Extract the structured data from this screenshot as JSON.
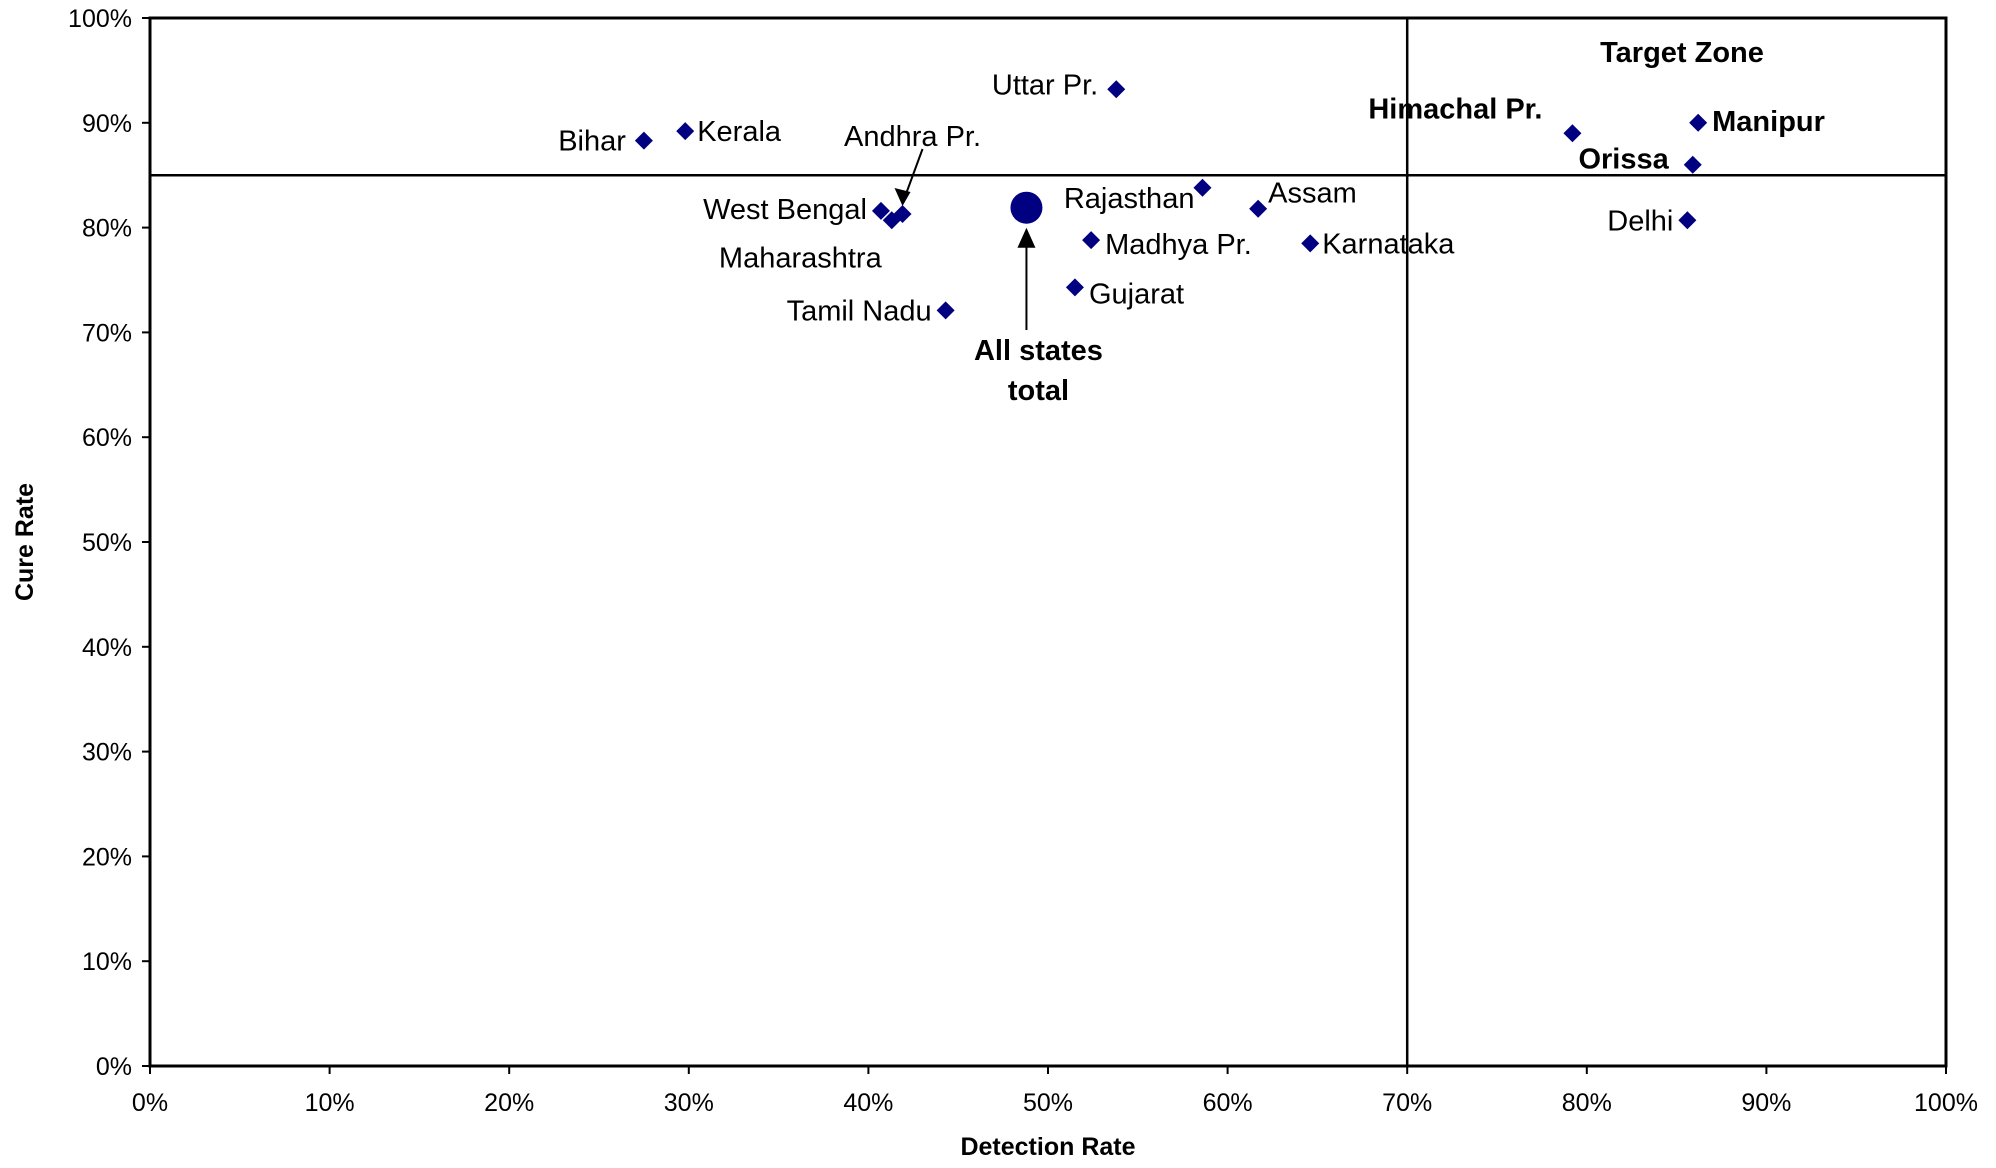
{
  "chart_data": {
    "type": "scatter",
    "title": "",
    "xlabel": "Detection Rate",
    "ylabel": "Cure Rate",
    "xlim": [
      0,
      100
    ],
    "ylim": [
      0,
      100
    ],
    "x_ticks": [
      "0%",
      "10%",
      "20%",
      "30%",
      "40%",
      "50%",
      "60%",
      "70%",
      "80%",
      "90%",
      "100%"
    ],
    "y_ticks": [
      "0%",
      "10%",
      "20%",
      "30%",
      "40%",
      "50%",
      "60%",
      "70%",
      "80%",
      "90%",
      "100%"
    ],
    "marker_color": "#000080",
    "grid": false,
    "reference_lines": {
      "target_detection": 70,
      "target_cure": 85
    },
    "points": [
      {
        "label": "Bihar",
        "x": 27.5,
        "y": 88.3,
        "bold": false
      },
      {
        "label": "Kerala",
        "x": 29.8,
        "y": 89.2,
        "bold": false
      },
      {
        "label": "Uttar Pr.",
        "x": 53.8,
        "y": 93.2,
        "bold": false
      },
      {
        "label": "Andhra Pr.",
        "x": 41.9,
        "y": 81.3,
        "bold": false
      },
      {
        "label": "West Bengal",
        "x": 40.7,
        "y": 81.6,
        "bold": false
      },
      {
        "label": "Maharashtra",
        "x": 41.3,
        "y": 80.7,
        "bold": false
      },
      {
        "label": "Tamil Nadu",
        "x": 44.3,
        "y": 72.1,
        "bold": false
      },
      {
        "label": "Rajasthan",
        "x": 58.6,
        "y": 83.8,
        "bold": false
      },
      {
        "label": "Assam",
        "x": 61.7,
        "y": 81.8,
        "bold": false
      },
      {
        "label": "Madhya Pr.",
        "x": 52.4,
        "y": 78.8,
        "bold": false
      },
      {
        "label": "Karnataka",
        "x": 64.6,
        "y": 78.5,
        "bold": false
      },
      {
        "label": "Gujarat",
        "x": 51.5,
        "y": 74.3,
        "bold": false
      },
      {
        "label": "Himachal Pr.",
        "x": 79.2,
        "y": 89.0,
        "bold": true
      },
      {
        "label": "Manipur",
        "x": 86.2,
        "y": 90.0,
        "bold": true
      },
      {
        "label": "Orissa",
        "x": 85.9,
        "y": 86.0,
        "bold": true
      },
      {
        "label": "Delhi",
        "x": 85.6,
        "y": 80.7,
        "bold": false
      }
    ],
    "total_point": {
      "label_line1": "All states",
      "label_line2": "total",
      "x": 48.8,
      "y": 81.9
    },
    "annotations": {
      "target_zone": "Target Zone"
    }
  }
}
